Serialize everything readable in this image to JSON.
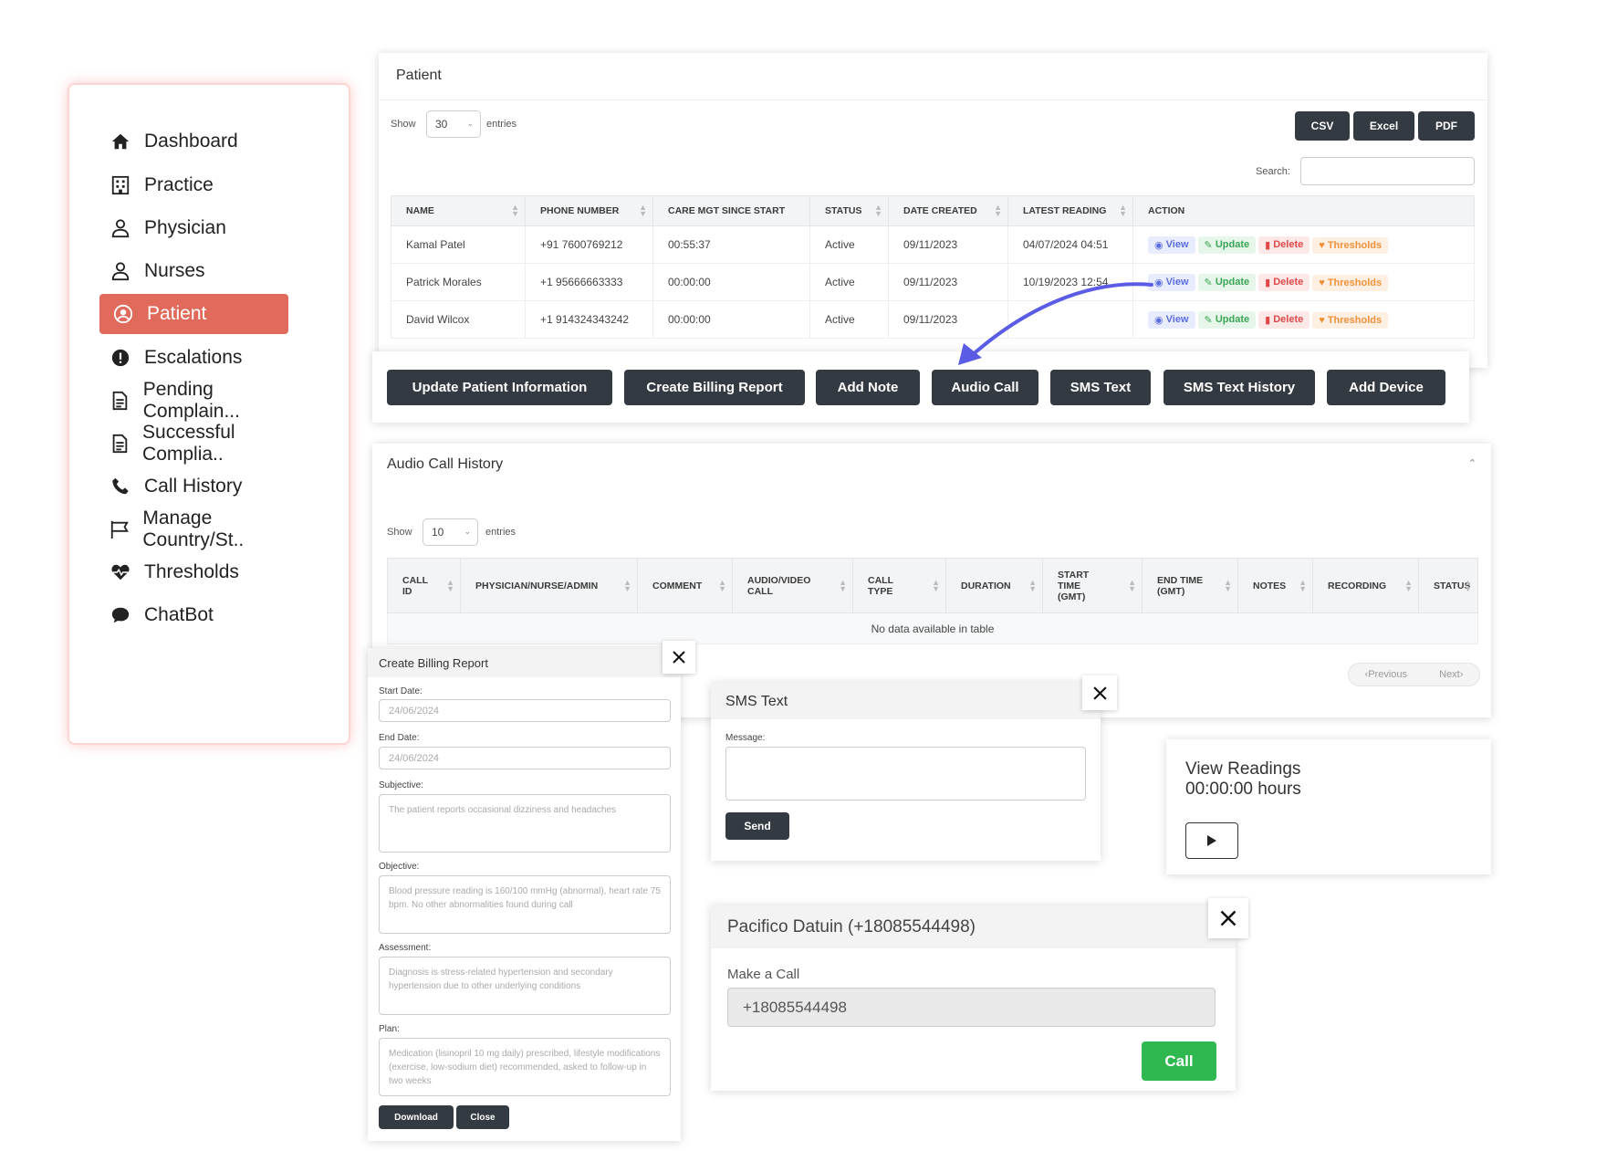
{
  "sidebar": {
    "items": [
      {
        "label": "Dashboard",
        "icon": "home-icon"
      },
      {
        "label": "Practice",
        "icon": "building-icon"
      },
      {
        "label": "Physician",
        "icon": "user-doctor-icon"
      },
      {
        "label": "Nurses",
        "icon": "user-nurse-icon"
      },
      {
        "label": "Patient",
        "icon": "user-circle-icon",
        "active": true
      },
      {
        "label": "Escalations",
        "icon": "alert-circle-icon"
      },
      {
        "label": "Pending Complain...",
        "icon": "document-icon"
      },
      {
        "label": "Successful Complia..",
        "icon": "document-icon"
      },
      {
        "label": "Call History",
        "icon": "phone-icon"
      },
      {
        "label": "Manage Country/St..",
        "icon": "flag-icon"
      },
      {
        "label": "Thresholds",
        "icon": "heartbeat-icon"
      },
      {
        "label": "ChatBot",
        "icon": "chat-bubble-icon"
      }
    ],
    "active_color": "#e06b5d"
  },
  "patient_panel": {
    "title": "Patient",
    "show_label": "Show",
    "entries_value": "30",
    "entries_label": "entries",
    "export_buttons": [
      "CSV",
      "Excel",
      "PDF"
    ],
    "search_label": "Search:",
    "columns": [
      "NAME",
      "PHONE NUMBER",
      "CARE MGT SINCE START",
      "STATUS",
      "DATE CREATED",
      "LATEST READING",
      "ACTION"
    ],
    "rows": [
      {
        "name": "Kamal Patel",
        "phone": "+91 7600769212",
        "care": "00:55:37",
        "status": "Active",
        "created": "09/11/2023",
        "latest": "04/07/2024 04:51"
      },
      {
        "name": "Patrick Morales",
        "phone": "+1 95666663333",
        "care": "00:00:00",
        "status": "Active",
        "created": "09/11/2023",
        "latest": "10/19/2023 12:54"
      },
      {
        "name": "David Wilcox",
        "phone": "+1 914324343242",
        "care": "00:00:00",
        "status": "Active",
        "created": "09/11/2023",
        "latest": ""
      }
    ],
    "action_labels": {
      "view": "View",
      "update": "Update",
      "delete": "Delete",
      "thresholds": "Thresholds"
    }
  },
  "action_bar": {
    "buttons": [
      "Update Patient Information",
      "Create Billing Report",
      "Add Note",
      "Audio Call",
      "SMS Text",
      "SMS Text History",
      "Add Device"
    ],
    "arrow_color": "#5b5ce6"
  },
  "audio_history": {
    "title": "Audio Call History",
    "show_label": "Show",
    "entries_value": "10",
    "entries_label": "entries",
    "columns": [
      [
        "CALL",
        "ID"
      ],
      [
        "PHYSICIAN/NURSE/ADMIN"
      ],
      [
        "COMMENT"
      ],
      [
        "AUDIO/VIDEO",
        "CALL"
      ],
      [
        "CALL",
        "TYPE"
      ],
      [
        "DURATION"
      ],
      [
        "START",
        "TIME",
        "(GMT)"
      ],
      [
        "END TIME",
        "(GMT)"
      ],
      [
        "NOTES"
      ],
      [
        "RECORDING"
      ],
      [
        "STATUS"
      ]
    ],
    "empty_text": "No data available in table",
    "prev_label": "Previous",
    "next_label": "Next"
  },
  "billing": {
    "title": "Create Billing Report",
    "start_label": "Start Date:",
    "start_value": "24/06/2024",
    "end_label": "End Date:",
    "end_value": "24/06/2024",
    "subjective_label": "Subjective:",
    "subjective_text": "The patient reports occasional dizziness and headaches",
    "objective_label": "Objective:",
    "objective_text": "Blood pressure reading is 160/100 mmHg (abnormal), heart rate 75 bpm. No other abnormalities found during call",
    "assessment_label": "Assessment:",
    "assessment_text": "Diagnosis is stress-related hypertension and secondary hypertension due to other underlying conditions",
    "plan_label": "Plan:",
    "plan_text": "Medication (lisinopril 10 mg daily) prescribed, lifestyle modifications (exercise, low-sodium diet) recommended, asked to follow-up in two weeks",
    "download_label": "Download",
    "close_label": "Close"
  },
  "sms": {
    "title": "SMS Text",
    "message_label": "Message:",
    "send_label": "Send"
  },
  "readings": {
    "title": "View Readings",
    "time": "00:00:00 hours"
  },
  "call": {
    "title": "Pacifico Datuin (+18085544498)",
    "make_label": "Make a Call",
    "number": "+18085544498",
    "call_label": "Call",
    "call_color": "#2eb84f"
  }
}
